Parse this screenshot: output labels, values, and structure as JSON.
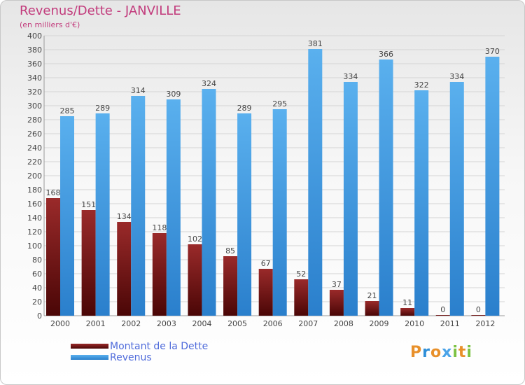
{
  "header": {
    "title": "Revenus/Dette - JANVILLE",
    "subtitle": "(en milliers d'€)"
  },
  "colors": {
    "title": "#c23b7c",
    "legend_text": "#4f6bdb",
    "debt_bar": "#8b1a1a",
    "revenue_bar": "#4aa3e8"
  },
  "chart_data": {
    "type": "bar",
    "categories": [
      "2000",
      "2001",
      "2002",
      "2003",
      "2004",
      "2005",
      "2006",
      "2007",
      "2008",
      "2009",
      "2010",
      "2011",
      "2012"
    ],
    "series": [
      {
        "name": "Montant de la Dette",
        "color": "#8b1a1a",
        "values": [
          168,
          151,
          134,
          118,
          102,
          85,
          67,
          52,
          37,
          21,
          11,
          0,
          0
        ]
      },
      {
        "name": "Revenus",
        "color": "#4aa3e8",
        "values": [
          285,
          289,
          314,
          309,
          324,
          289,
          295,
          381,
          334,
          366,
          322,
          334,
          370
        ]
      }
    ],
    "ylim": [
      0,
      400
    ],
    "ytick_step": 20,
    "grid": true,
    "legend_position": "bottom-left",
    "xlabel": "",
    "ylabel": ""
  },
  "logo": {
    "letters": [
      "P",
      "r",
      "o",
      "x",
      "i",
      "t",
      "i"
    ],
    "icon": "proxiti-logo"
  }
}
